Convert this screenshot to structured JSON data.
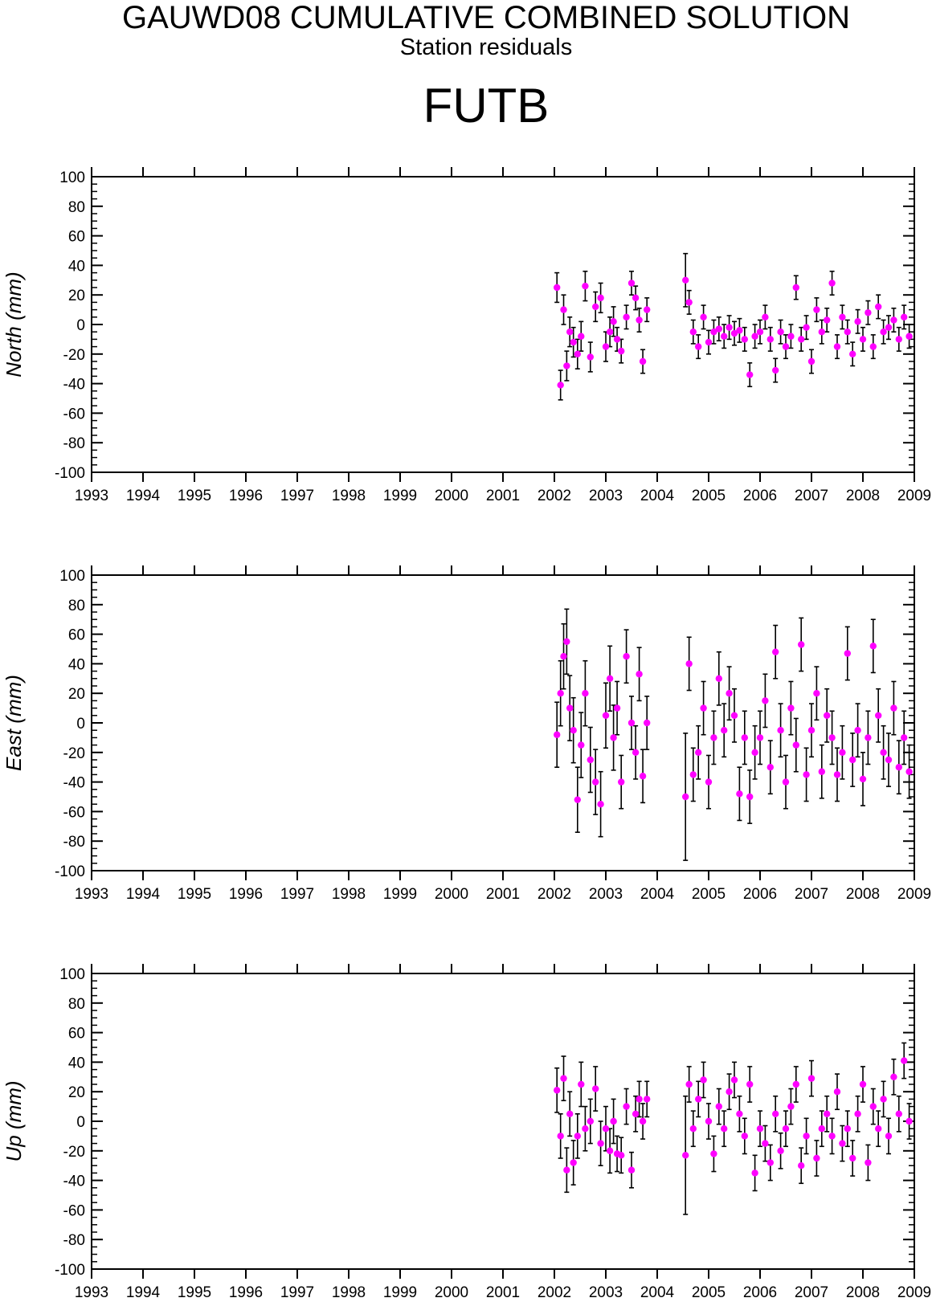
{
  "header": {
    "title": "GAUWD08 CUMULATIVE COMBINED SOLUTION",
    "subtitle": "Station residuals",
    "station": "FUTB"
  },
  "colors": {
    "point": "#ff00ff",
    "errorbar": "#000000",
    "axis": "#000000"
  },
  "chart_data": [
    {
      "type": "scatter",
      "ylabel": "North (mm)",
      "xlim": [
        1993,
        2009
      ],
      "ylim": [
        -100,
        100
      ],
      "yticks": [
        "100",
        "80",
        "60",
        "40",
        "20",
        "0",
        "-20",
        "-40",
        "-60",
        "-80",
        "-100"
      ],
      "xticks": [
        "1993",
        "1994",
        "1995",
        "1996",
        "1997",
        "1998",
        "1999",
        "2000",
        "2001",
        "2002",
        "2003",
        "2004",
        "2005",
        "2006",
        "2007",
        "2008",
        "2009"
      ],
      "grid": false,
      "series": [
        {
          "x": [
            2002.05,
            2002.12,
            2002.18,
            2002.24,
            2002.3,
            2002.37,
            2002.45,
            2002.52,
            2002.6,
            2002.7,
            2002.8,
            2002.9,
            2003.0,
            2003.08,
            2003.15,
            2003.22,
            2003.3,
            2003.4,
            2003.5,
            2003.58,
            2003.65,
            2003.72,
            2003.8,
            2004.55,
            2004.62,
            2004.7,
            2004.8,
            2004.9,
            2005.0,
            2005.1,
            2005.2,
            2005.3,
            2005.4,
            2005.5,
            2005.6,
            2005.7,
            2005.8,
            2005.9,
            2006.0,
            2006.1,
            2006.2,
            2006.3,
            2006.4,
            2006.5,
            2006.6,
            2006.7,
            2006.8,
            2006.9,
            2007.0,
            2007.1,
            2007.2,
            2007.3,
            2007.4,
            2007.5,
            2007.6,
            2007.7,
            2007.8,
            2007.9,
            2008.0,
            2008.1,
            2008.2,
            2008.3,
            2008.4,
            2008.5,
            2008.6,
            2008.7,
            2008.8,
            2008.9
          ],
          "y": [
            25,
            -41,
            10,
            -28,
            -5,
            -12,
            -20,
            -8,
            26,
            -22,
            12,
            18,
            -15,
            -5,
            2,
            -10,
            -18,
            5,
            28,
            18,
            3,
            -25,
            10,
            30,
            15,
            -5,
            -15,
            5,
            -12,
            -5,
            -3,
            -8,
            -2,
            -6,
            -4,
            -10,
            -34,
            -8,
            -5,
            5,
            -10,
            -31,
            -5,
            -15,
            -8,
            25,
            -10,
            -2,
            -25,
            10,
            -5,
            3,
            28,
            -15,
            5,
            -5,
            -20,
            2,
            -10,
            8,
            -15,
            12,
            -5,
            -2,
            3,
            -10,
            5,
            -8
          ],
          "err": [
            10,
            10,
            10,
            10,
            10,
            10,
            10,
            10,
            10,
            10,
            10,
            10,
            10,
            10,
            10,
            8,
            8,
            8,
            8,
            8,
            8,
            8,
            8,
            18,
            8,
            8,
            8,
            8,
            8,
            8,
            8,
            8,
            8,
            8,
            8,
            8,
            8,
            8,
            8,
            8,
            8,
            8,
            8,
            8,
            8,
            8,
            8,
            8,
            8,
            8,
            8,
            8,
            8,
            8,
            8,
            8,
            8,
            8,
            8,
            8,
            8,
            8,
            8,
            8,
            8,
            8,
            8,
            8
          ]
        }
      ]
    },
    {
      "type": "scatter",
      "ylabel": "East (mm)",
      "xlim": [
        1993,
        2009
      ],
      "ylim": [
        -100,
        100
      ],
      "yticks": [
        "100",
        "80",
        "60",
        "40",
        "20",
        "0",
        "-20",
        "-40",
        "-60",
        "-80",
        "-100"
      ],
      "xticks": [
        "1993",
        "1994",
        "1995",
        "1996",
        "1997",
        "1998",
        "1999",
        "2000",
        "2001",
        "2002",
        "2003",
        "2004",
        "2005",
        "2006",
        "2007",
        "2008",
        "2009"
      ],
      "grid": false,
      "series": [
        {
          "x": [
            2002.05,
            2002.12,
            2002.18,
            2002.24,
            2002.3,
            2002.37,
            2002.45,
            2002.52,
            2002.6,
            2002.7,
            2002.8,
            2002.9,
            2003.0,
            2003.08,
            2003.15,
            2003.22,
            2003.3,
            2003.4,
            2003.5,
            2003.58,
            2003.65,
            2003.72,
            2003.8,
            2004.55,
            2004.62,
            2004.7,
            2004.8,
            2004.9,
            2005.0,
            2005.1,
            2005.2,
            2005.3,
            2005.4,
            2005.5,
            2005.6,
            2005.7,
            2005.8,
            2005.9,
            2006.0,
            2006.1,
            2006.2,
            2006.3,
            2006.4,
            2006.5,
            2006.6,
            2006.7,
            2006.8,
            2006.9,
            2007.0,
            2007.1,
            2007.2,
            2007.3,
            2007.4,
            2007.5,
            2007.6,
            2007.7,
            2007.8,
            2007.9,
            2008.0,
            2008.1,
            2008.2,
            2008.3,
            2008.4,
            2008.5,
            2008.6,
            2008.7,
            2008.8,
            2008.9
          ],
          "y": [
            -8,
            20,
            45,
            55,
            10,
            -5,
            -52,
            -15,
            20,
            -25,
            -40,
            -55,
            5,
            30,
            -10,
            10,
            -40,
            45,
            0,
            -20,
            33,
            -36,
            0,
            -50,
            40,
            -35,
            -20,
            10,
            -40,
            -10,
            30,
            -5,
            20,
            5,
            -48,
            -10,
            -50,
            -20,
            -10,
            15,
            -30,
            48,
            -5,
            -40,
            10,
            -15,
            53,
            -35,
            -5,
            20,
            -33,
            5,
            -10,
            -35,
            -20,
            47,
            -25,
            -5,
            -38,
            -10,
            52,
            5,
            -20,
            -25,
            10,
            -30,
            -10,
            -33
          ],
          "err": [
            22,
            22,
            22,
            22,
            22,
            22,
            22,
            22,
            22,
            22,
            22,
            22,
            22,
            22,
            22,
            18,
            18,
            18,
            18,
            18,
            18,
            18,
            18,
            43,
            18,
            18,
            18,
            18,
            18,
            18,
            18,
            18,
            18,
            18,
            18,
            18,
            18,
            18,
            18,
            18,
            18,
            18,
            18,
            18,
            18,
            18,
            18,
            18,
            18,
            18,
            18,
            18,
            18,
            18,
            18,
            18,
            18,
            18,
            18,
            18,
            18,
            18,
            18,
            18,
            18,
            18,
            18,
            18
          ]
        }
      ]
    },
    {
      "type": "scatter",
      "ylabel": "Up (mm)",
      "xlim": [
        1993,
        2009
      ],
      "ylim": [
        -100,
        100
      ],
      "yticks": [
        "100",
        "80",
        "60",
        "40",
        "20",
        "0",
        "-20",
        "-40",
        "-60",
        "-80",
        "-100"
      ],
      "xticks": [
        "1993",
        "1994",
        "1995",
        "1996",
        "1997",
        "1998",
        "1999",
        "2000",
        "2001",
        "2002",
        "2003",
        "2004",
        "2005",
        "2006",
        "2007",
        "2008",
        "2009"
      ],
      "grid": false,
      "series": [
        {
          "x": [
            2002.05,
            2002.12,
            2002.18,
            2002.24,
            2002.3,
            2002.37,
            2002.45,
            2002.52,
            2002.6,
            2002.7,
            2002.8,
            2002.9,
            2003.0,
            2003.08,
            2003.15,
            2003.22,
            2003.3,
            2003.4,
            2003.5,
            2003.58,
            2003.65,
            2003.72,
            2003.8,
            2004.55,
            2004.62,
            2004.7,
            2004.8,
            2004.9,
            2005.0,
            2005.1,
            2005.2,
            2005.3,
            2005.4,
            2005.5,
            2005.6,
            2005.7,
            2005.8,
            2005.9,
            2006.0,
            2006.1,
            2006.2,
            2006.3,
            2006.4,
            2006.5,
            2006.6,
            2006.7,
            2006.8,
            2006.9,
            2007.0,
            2007.1,
            2007.2,
            2007.3,
            2007.4,
            2007.5,
            2007.6,
            2007.7,
            2007.8,
            2007.9,
            2008.0,
            2008.1,
            2008.2,
            2008.3,
            2008.4,
            2008.5,
            2008.6,
            2008.7,
            2008.8,
            2008.9
          ],
          "y": [
            21,
            -10,
            29,
            -33,
            5,
            -28,
            -10,
            25,
            -5,
            0,
            22,
            -15,
            -5,
            -20,
            0,
            -22,
            -23,
            10,
            -33,
            5,
            15,
            0,
            15,
            -23,
            25,
            -5,
            15,
            28,
            0,
            -22,
            10,
            -5,
            20,
            28,
            5,
            -10,
            25,
            -35,
            -5,
            -15,
            -28,
            5,
            -20,
            -5,
            10,
            25,
            -30,
            -10,
            29,
            -25,
            -5,
            5,
            -10,
            20,
            -15,
            -5,
            -25,
            5,
            25,
            -28,
            10,
            -5,
            15,
            -10,
            30,
            5,
            41,
            0
          ],
          "err": [
            15,
            15,
            15,
            15,
            15,
            15,
            15,
            15,
            15,
            15,
            15,
            15,
            15,
            15,
            15,
            12,
            12,
            12,
            12,
            12,
            12,
            12,
            12,
            40,
            12,
            12,
            12,
            12,
            12,
            12,
            12,
            12,
            12,
            12,
            12,
            12,
            12,
            12,
            12,
            12,
            12,
            12,
            12,
            12,
            12,
            12,
            12,
            12,
            12,
            12,
            12,
            12,
            12,
            12,
            12,
            12,
            12,
            12,
            12,
            12,
            12,
            12,
            12,
            12,
            12,
            12,
            12,
            12
          ]
        }
      ]
    }
  ]
}
